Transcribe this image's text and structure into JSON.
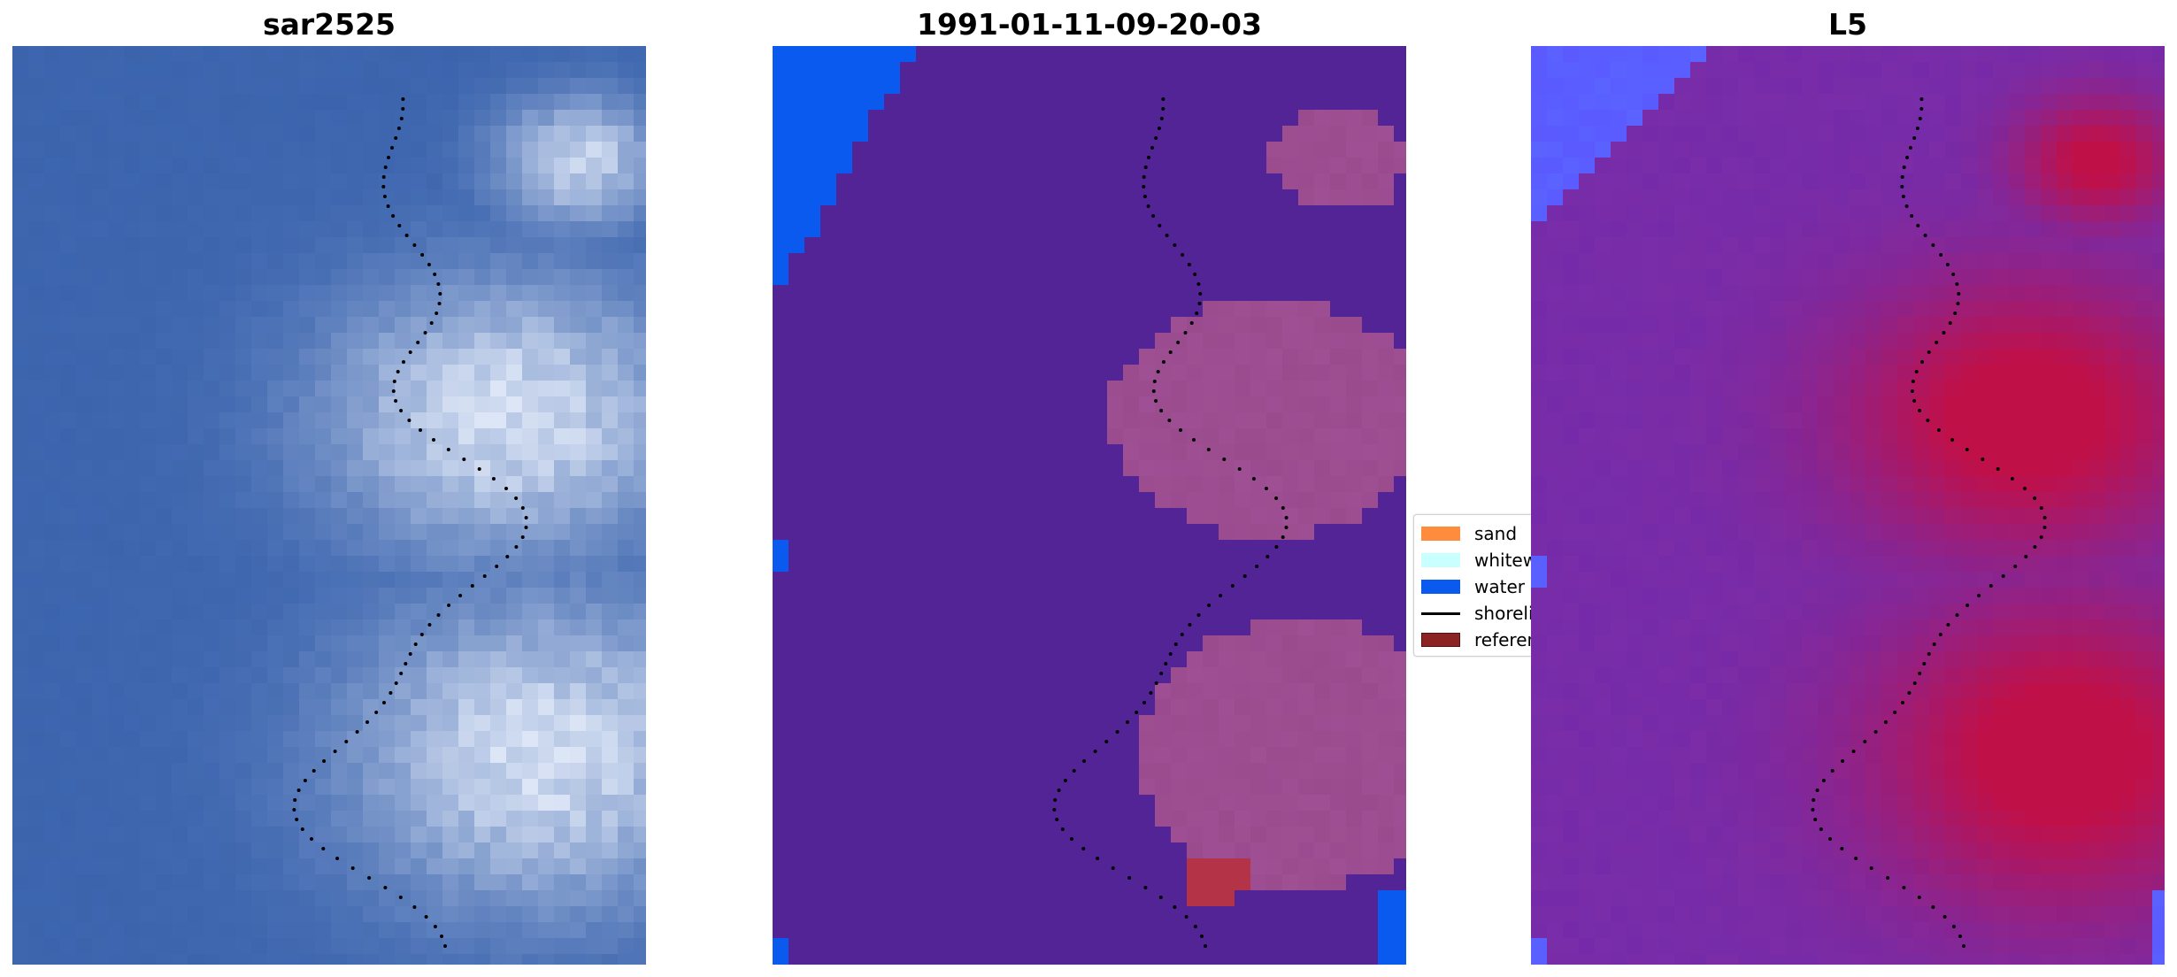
{
  "panels": [
    {
      "title": "sar2525",
      "content": "rgb-satellite-image"
    },
    {
      "title": "1991-01-11-09-20-03",
      "content": "classified-image"
    },
    {
      "title": "L5",
      "content": "index-image"
    }
  ],
  "legend": {
    "items": [
      {
        "label": "sand",
        "color": "#ff8c3c",
        "kind": "patch"
      },
      {
        "label": "whitewater",
        "color": "#c8ffff",
        "kind": "patch"
      },
      {
        "label": "water",
        "color": "#0a5af0",
        "kind": "patch"
      },
      {
        "label": "shoreline",
        "color": "#000000",
        "kind": "line"
      },
      {
        "label": "reference",
        "color": "#8b2323",
        "kind": "patch"
      }
    ]
  },
  "colors": {
    "rgb_water": "#3b64ad",
    "rgb_whitewater": "#dde6f6",
    "class_background": "#532496",
    "class_water": "#0a5af0",
    "class_land": "#9a4b8e",
    "class_reference": "#b53346",
    "index_background": "#7a2da8",
    "index_land": "#c01048",
    "index_water": "#5a5aff"
  }
}
